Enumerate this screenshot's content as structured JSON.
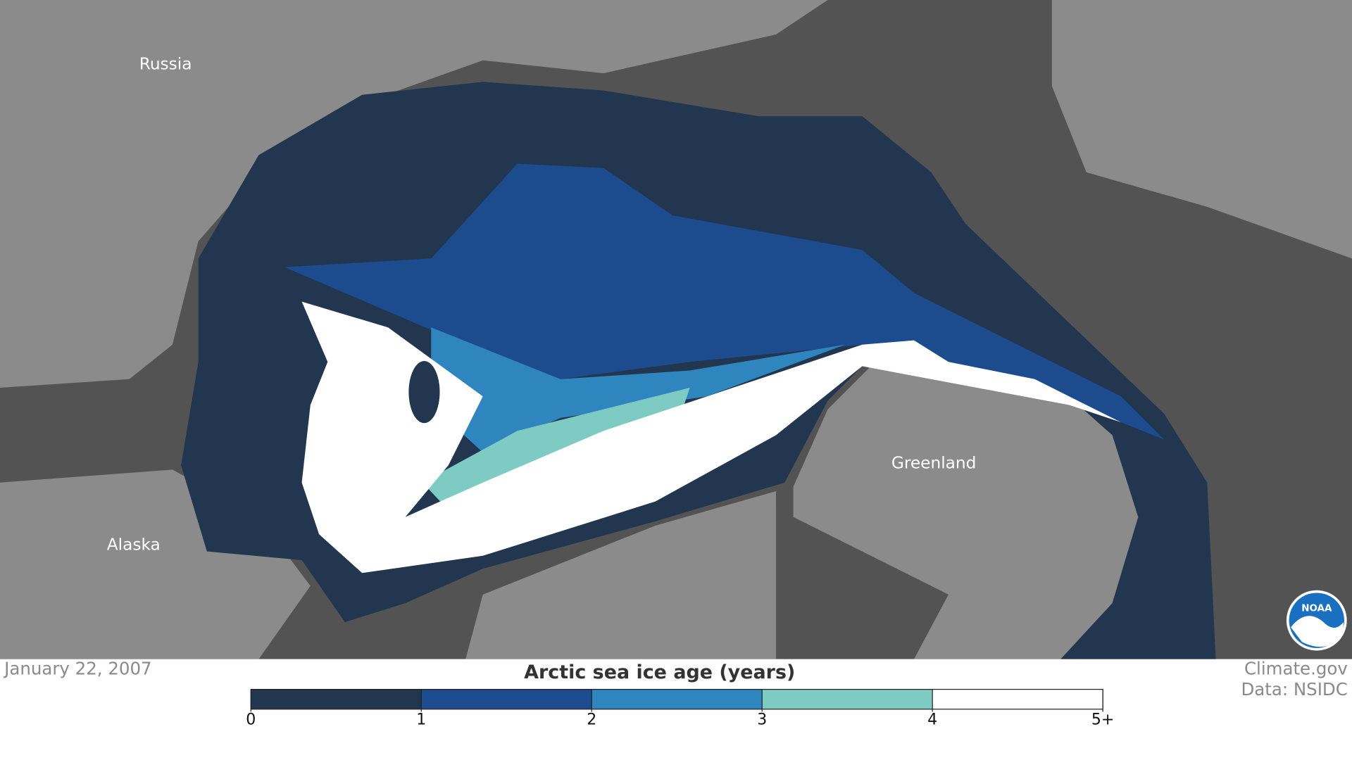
{
  "map": {
    "labels": [
      "Russia",
      "Alaska",
      "Greenland"
    ],
    "logo": "NOAA"
  },
  "date": "January 22, 2007",
  "credits": [
    "Climate.gov",
    "Data: NSIDC"
  ],
  "legend": {
    "title": "Arctic sea ice age (years)",
    "bins": [
      {
        "color": "#22364f"
      },
      {
        "color": "#1c4c8e"
      },
      {
        "color": "#2f86be"
      },
      {
        "color": "#7ecbc3"
      },
      {
        "color": "#ffffff"
      }
    ],
    "range": [
      0,
      5
    ],
    "ticks": [
      0,
      1,
      2,
      3,
      4,
      {
        "value": 5,
        "label": "5+"
      }
    ]
  }
}
